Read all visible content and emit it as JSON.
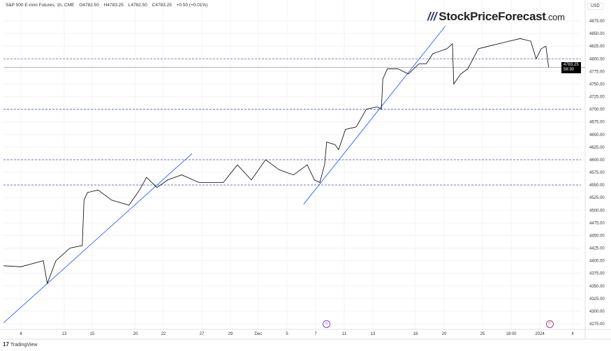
{
  "header": {
    "symbol": "S&P 500 E-mini Futures, 1h, CME",
    "open": "O4782.50",
    "high": "H4783.25",
    "low": "L4782.50",
    "close": "C4783.25",
    "change": "+0.50 (+0.01%)"
  },
  "logo": {
    "text": "StockPriceForecast",
    "suffix": ".com"
  },
  "currency": "USD",
  "footer": {
    "brand": "TradingView"
  },
  "price_label": {
    "price": "4783.25",
    "countdown": "58:30"
  },
  "events": [
    {
      "icon": "dividend-arrow-icon",
      "date": "2023-12-08"
    },
    {
      "icon": "lightning-icon",
      "date": "2024-01-02"
    }
  ],
  "colors": {
    "price": "#000000",
    "trendline": "#2962ff",
    "level": "#5b6bbf",
    "current": "#9e9e9e",
    "event": "#8b3fd9"
  },
  "chart_data": {
    "type": "line",
    "title": "S&P 500 E-mini Futures, 1h, CME",
    "ylim": [
      4265,
      4890
    ],
    "y_ticks": [
      4275,
      4300,
      4325,
      4350,
      4375,
      4400,
      4425,
      4450,
      4475,
      4500,
      4525,
      4550,
      4575,
      4600,
      4625,
      4650,
      4675,
      4700,
      4725,
      4750,
      4775,
      4800,
      4825,
      4850,
      4875
    ],
    "x_ticks": [
      {
        "label": "8",
        "date": "2023-11-08T00:00"
      },
      {
        "label": "13",
        "date": "2023-11-13T00:00"
      },
      {
        "label": "15",
        "date": "2023-11-15T00:00"
      },
      {
        "label": "20",
        "date": "2023-11-20T00:00"
      },
      {
        "label": "22",
        "date": "2023-11-22T00:00"
      },
      {
        "label": "27",
        "date": "2023-11-27T00:00"
      },
      {
        "label": "29",
        "date": "2023-11-29T00:00"
      },
      {
        "label": "Dec",
        "date": "2023-12-01T00:00"
      },
      {
        "label": "5",
        "date": "2023-12-05T00:00"
      },
      {
        "label": "7",
        "date": "2023-12-07T00:00"
      },
      {
        "label": "11",
        "date": "2023-12-11T00:00"
      },
      {
        "label": "13",
        "date": "2023-12-13T00:00"
      },
      {
        "label": "18",
        "date": "2023-12-18T00:00"
      },
      {
        "label": "20",
        "date": "2023-12-20T00:00"
      },
      {
        "label": "25",
        "date": "2023-12-25T00:00"
      },
      {
        "label": "18:00",
        "date": "2023-12-27T18:00"
      },
      {
        "label": "2024",
        "date": "2024-01-02T00:00"
      },
      {
        "label": "4",
        "date": "2024-01-04T00:00"
      }
    ],
    "series": [
      {
        "values": [
          [
            "2023-11-06T00:00",
            4390
          ],
          [
            "2023-11-08T00:00",
            4388
          ],
          [
            "2023-11-10T14:00",
            4400
          ],
          [
            "2023-11-11T01:00",
            4355
          ],
          [
            "2023-11-12T01:00",
            4400
          ],
          [
            "2023-11-13T10:00",
            4425
          ],
          [
            "2023-11-14T07:00",
            4430
          ],
          [
            "2023-11-14T10:00",
            4520
          ],
          [
            "2023-11-14T16:00",
            4535
          ],
          [
            "2023-11-15T16:00",
            4540
          ],
          [
            "2023-11-17T06:00",
            4520
          ],
          [
            "2023-11-19T06:00",
            4510
          ],
          [
            "2023-11-20T07:00",
            4540
          ],
          [
            "2023-11-20T19:00",
            4565
          ],
          [
            "2023-11-21T13:00",
            4545
          ],
          [
            "2023-11-22T13:00",
            4560
          ],
          [
            "2023-11-24T09:00",
            4570
          ],
          [
            "2023-11-26T15:00",
            4555
          ],
          [
            "2023-11-27T13:00",
            4555
          ],
          [
            "2023-11-28T12:00",
            4555
          ],
          [
            "2023-11-29T12:00",
            4590
          ],
          [
            "2023-11-30T12:00",
            4560
          ],
          [
            "2023-12-02T00:00",
            4600
          ],
          [
            "2023-12-03T22:00",
            4580
          ],
          [
            "2023-12-05T11:00",
            4570
          ],
          [
            "2023-12-06T10:00",
            4590
          ],
          [
            "2023-12-06T22:00",
            4560
          ],
          [
            "2023-12-07T14:00",
            4555
          ],
          [
            "2023-12-08T06:00",
            4590
          ],
          [
            "2023-12-08T13:00",
            4635
          ],
          [
            "2023-12-09T17:00",
            4630
          ],
          [
            "2023-12-10T05:00",
            4620
          ],
          [
            "2023-12-11T02:00",
            4660
          ],
          [
            "2023-12-11T20:00",
            4665
          ],
          [
            "2023-12-12T13:00",
            4700
          ],
          [
            "2023-12-13T12:00",
            4705
          ],
          [
            "2023-12-14T00:00",
            4700
          ],
          [
            "2023-12-14T04:00",
            4760
          ],
          [
            "2023-12-14T17:00",
            4780
          ],
          [
            "2023-12-15T23:00",
            4780
          ],
          [
            "2023-12-17T04:00",
            4770
          ],
          [
            "2023-12-18T06:00",
            4790
          ],
          [
            "2023-12-18T18:00",
            4790
          ],
          [
            "2023-12-19T05:00",
            4810
          ],
          [
            "2023-12-20T09:00",
            4820
          ],
          [
            "2023-12-21T02:00",
            4830
          ],
          [
            "2023-12-21T06:00",
            4750
          ],
          [
            "2023-12-22T04:00",
            4770
          ],
          [
            "2023-12-23T02:00",
            4780
          ],
          [
            "2023-12-24T11:00",
            4820
          ],
          [
            "2023-12-25T14:00",
            4825
          ],
          [
            "2023-12-26T14:00",
            4830
          ],
          [
            "2023-12-27T14:00",
            4835
          ],
          [
            "2023-12-29T10:00",
            4840
          ],
          [
            "2023-12-31T08:00",
            4835
          ],
          [
            "2024-01-01T08:00",
            4800
          ],
          [
            "2024-01-02T02:00",
            4820
          ],
          [
            "2024-01-02T09:00",
            4825
          ],
          [
            "2024-01-02T13:00",
            4783.25
          ]
        ]
      }
    ],
    "trendlines": [
      [
        [
          "2023-11-06T00:00",
          4277
        ],
        [
          "2023-11-25T17:00",
          4612
        ]
      ],
      [
        [
          "2023-12-06T04:00",
          4512
        ],
        [
          "2023-12-20T04:00",
          4865
        ]
      ]
    ],
    "levels": [
      4800,
      4700,
      4600,
      4550
    ],
    "current_price": 4783.25,
    "grid": true
  }
}
